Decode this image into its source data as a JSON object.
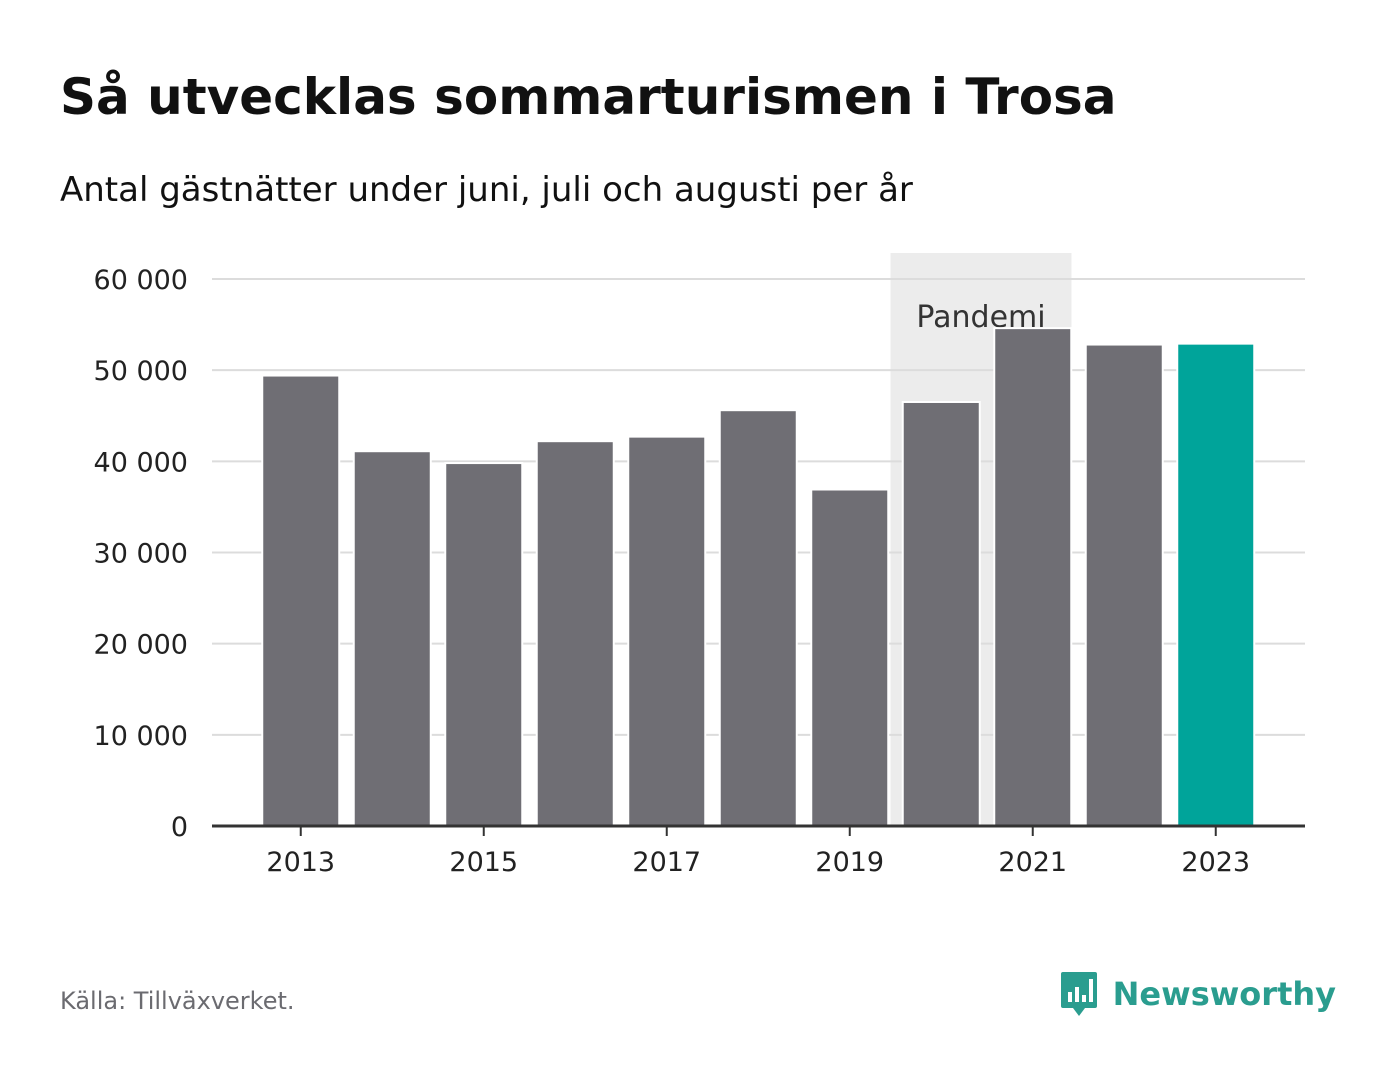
{
  "header": {
    "title": "Så utvecklas sommarturismen i Trosa",
    "subtitle": "Antal gästnätter under juni, juli och augusti per år"
  },
  "footer": {
    "source": "Källa: Tillväxverket.",
    "brand": "Newsworthy",
    "brand_icon": "newsworthy-logo-icon"
  },
  "colors": {
    "bar": "#6f6e74",
    "highlight": "#00a49a",
    "grid": "#dcdcdc",
    "axis": "#333333",
    "band": "#ececec",
    "brand": "#2a9d8f"
  },
  "chart_data": {
    "type": "bar",
    "categories": [
      "2013",
      "2014",
      "2015",
      "2016",
      "2017",
      "2018",
      "2019",
      "2020",
      "2021",
      "2022",
      "2023"
    ],
    "values": [
      49300,
      41000,
      39700,
      42100,
      42600,
      45500,
      36800,
      46400,
      54500,
      52700,
      52800
    ],
    "highlight_category": "2023",
    "ylim": [
      0,
      60000
    ],
    "yticks": [
      0,
      10000,
      20000,
      30000,
      40000,
      50000,
      60000
    ],
    "ytick_labels": [
      "0",
      "10 000",
      "20 000",
      "30 000",
      "40 000",
      "50 000",
      "60 000"
    ],
    "xtick_labels": [
      "2013",
      "2015",
      "2017",
      "2019",
      "2021",
      "2023"
    ],
    "grid": true,
    "annotation": {
      "label": "Pandemi",
      "from": "2020",
      "to": "2021"
    }
  }
}
